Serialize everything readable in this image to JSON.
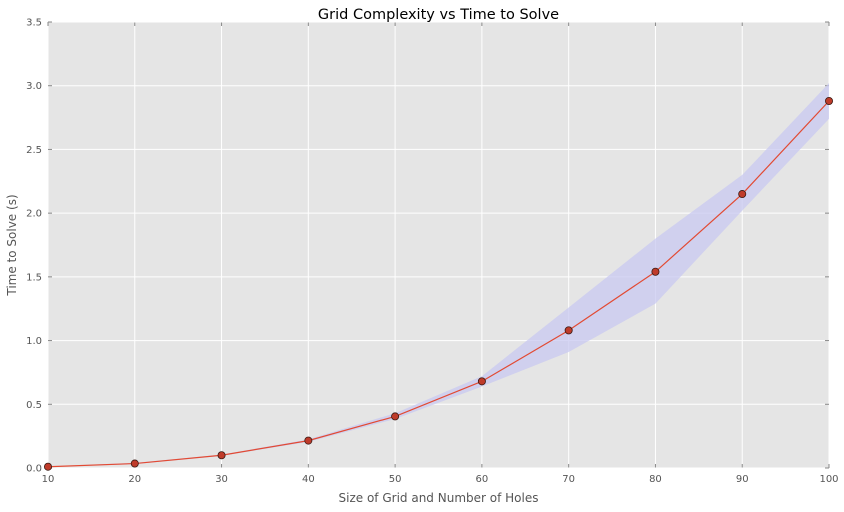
{
  "chart_data": {
    "type": "line",
    "title": "Grid Complexity vs Time to Solve",
    "xlabel": "Size of Grid and Number of Holes",
    "ylabel": "Time to Solve (s)",
    "xlim": [
      10,
      100
    ],
    "ylim": [
      0,
      3.5
    ],
    "xticks": [
      "10",
      "20",
      "30",
      "40",
      "50",
      "60",
      "70",
      "80",
      "90",
      "100"
    ],
    "yticks": [
      "0.0",
      "0.5",
      "1.0",
      "1.5",
      "2.0",
      "2.5",
      "3.0",
      "3.5"
    ],
    "grid": true,
    "x": [
      10,
      20,
      30,
      40,
      50,
      60,
      70,
      80,
      90,
      100
    ],
    "series": [
      {
        "values": [
          0.01,
          0.035,
          0.1,
          0.215,
          0.405,
          0.68,
          1.08,
          1.54,
          2.15,
          2.88
        ],
        "lower": [
          0.008,
          0.03,
          0.095,
          0.205,
          0.385,
          0.64,
          0.91,
          1.29,
          2.02,
          2.74
        ],
        "upper": [
          0.012,
          0.04,
          0.105,
          0.225,
          0.43,
          0.72,
          1.26,
          1.8,
          2.3,
          3.02
        ],
        "line_color": "#e24a33",
        "marker_color": "#bf3b2a",
        "band_color": "#c8c8f0"
      }
    ],
    "background_color": "#e5e5e5",
    "grid_color": "#ffffff"
  }
}
